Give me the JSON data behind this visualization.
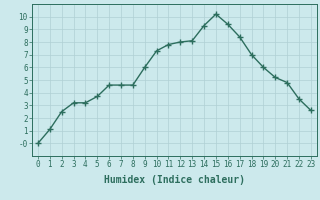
{
  "x": [
    0,
    1,
    2,
    3,
    4,
    5,
    6,
    7,
    8,
    9,
    10,
    11,
    12,
    13,
    14,
    15,
    16,
    17,
    18,
    19,
    20,
    21,
    22,
    23
  ],
  "y": [
    -0.0,
    1.1,
    2.5,
    3.2,
    3.2,
    3.7,
    4.6,
    4.6,
    4.6,
    6.0,
    7.3,
    7.8,
    8.0,
    8.1,
    9.3,
    10.2,
    9.4,
    8.4,
    7.0,
    6.0,
    5.2,
    4.8,
    3.5,
    2.6
  ],
  "line_color": "#2d6e5e",
  "marker": "+",
  "marker_size": 4,
  "xlabel": "Humidex (Indice chaleur)",
  "xlim": [
    -0.5,
    23.5
  ],
  "ylim": [
    -1,
    11
  ],
  "yticks": [
    0,
    1,
    2,
    3,
    4,
    5,
    6,
    7,
    8,
    9,
    10
  ],
  "ytick_labels": [
    "-0",
    "1",
    "2",
    "3",
    "4",
    "5",
    "6",
    "7",
    "8",
    "9",
    "10"
  ],
  "xticks": [
    0,
    1,
    2,
    3,
    4,
    5,
    6,
    7,
    8,
    9,
    10,
    11,
    12,
    13,
    14,
    15,
    16,
    17,
    18,
    19,
    20,
    21,
    22,
    23
  ],
  "background_color": "#cce9ec",
  "grid_color": "#b0d0d4",
  "line_width": 1.0,
  "tick_fontsize": 5.5,
  "xlabel_fontsize": 7.0
}
